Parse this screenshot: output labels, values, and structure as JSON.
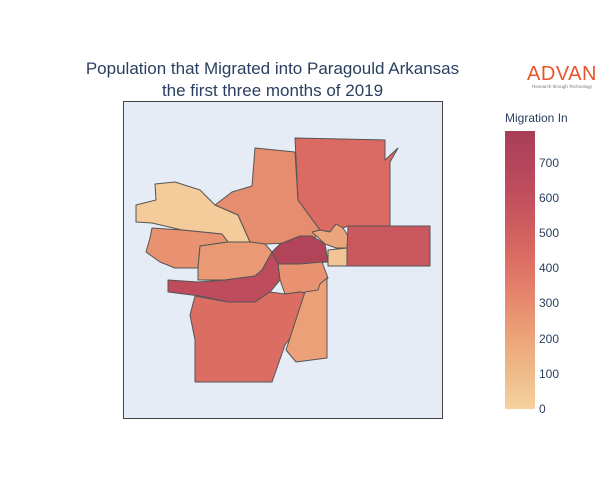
{
  "title": {
    "line1": "Population that Migrated into Paragould Arkansas",
    "line2": "the first three months of 2019"
  },
  "logo": {
    "name": "ADVAN",
    "tagline": "Research through Technology"
  },
  "colorbar": {
    "title": "Migration In",
    "min": 0,
    "max": 790,
    "ticks": [
      "0",
      "100",
      "200",
      "300",
      "400",
      "500",
      "600",
      "700"
    ],
    "colors": [
      "#f6d2a0",
      "#efb989",
      "#eb9f77",
      "#e4836b",
      "#da6a62",
      "#c9575f",
      "#b8475c",
      "#a83e58"
    ]
  },
  "regions": [
    {
      "id": "northwest",
      "value": 30
    },
    {
      "id": "north-central",
      "value": 300
    },
    {
      "id": "northeast",
      "value": 450
    },
    {
      "id": "west",
      "value": 280
    },
    {
      "id": "west-central",
      "value": 250
    },
    {
      "id": "central-east-small",
      "value": 200
    },
    {
      "id": "downtown",
      "value": 720
    },
    {
      "id": "central-south",
      "value": 280
    },
    {
      "id": "east",
      "value": 560
    },
    {
      "id": "central-tiny",
      "value": 60
    },
    {
      "id": "southwest-strip",
      "value": 640
    },
    {
      "id": "south",
      "value": 440
    },
    {
      "id": "southeast",
      "value": 220
    }
  ]
}
